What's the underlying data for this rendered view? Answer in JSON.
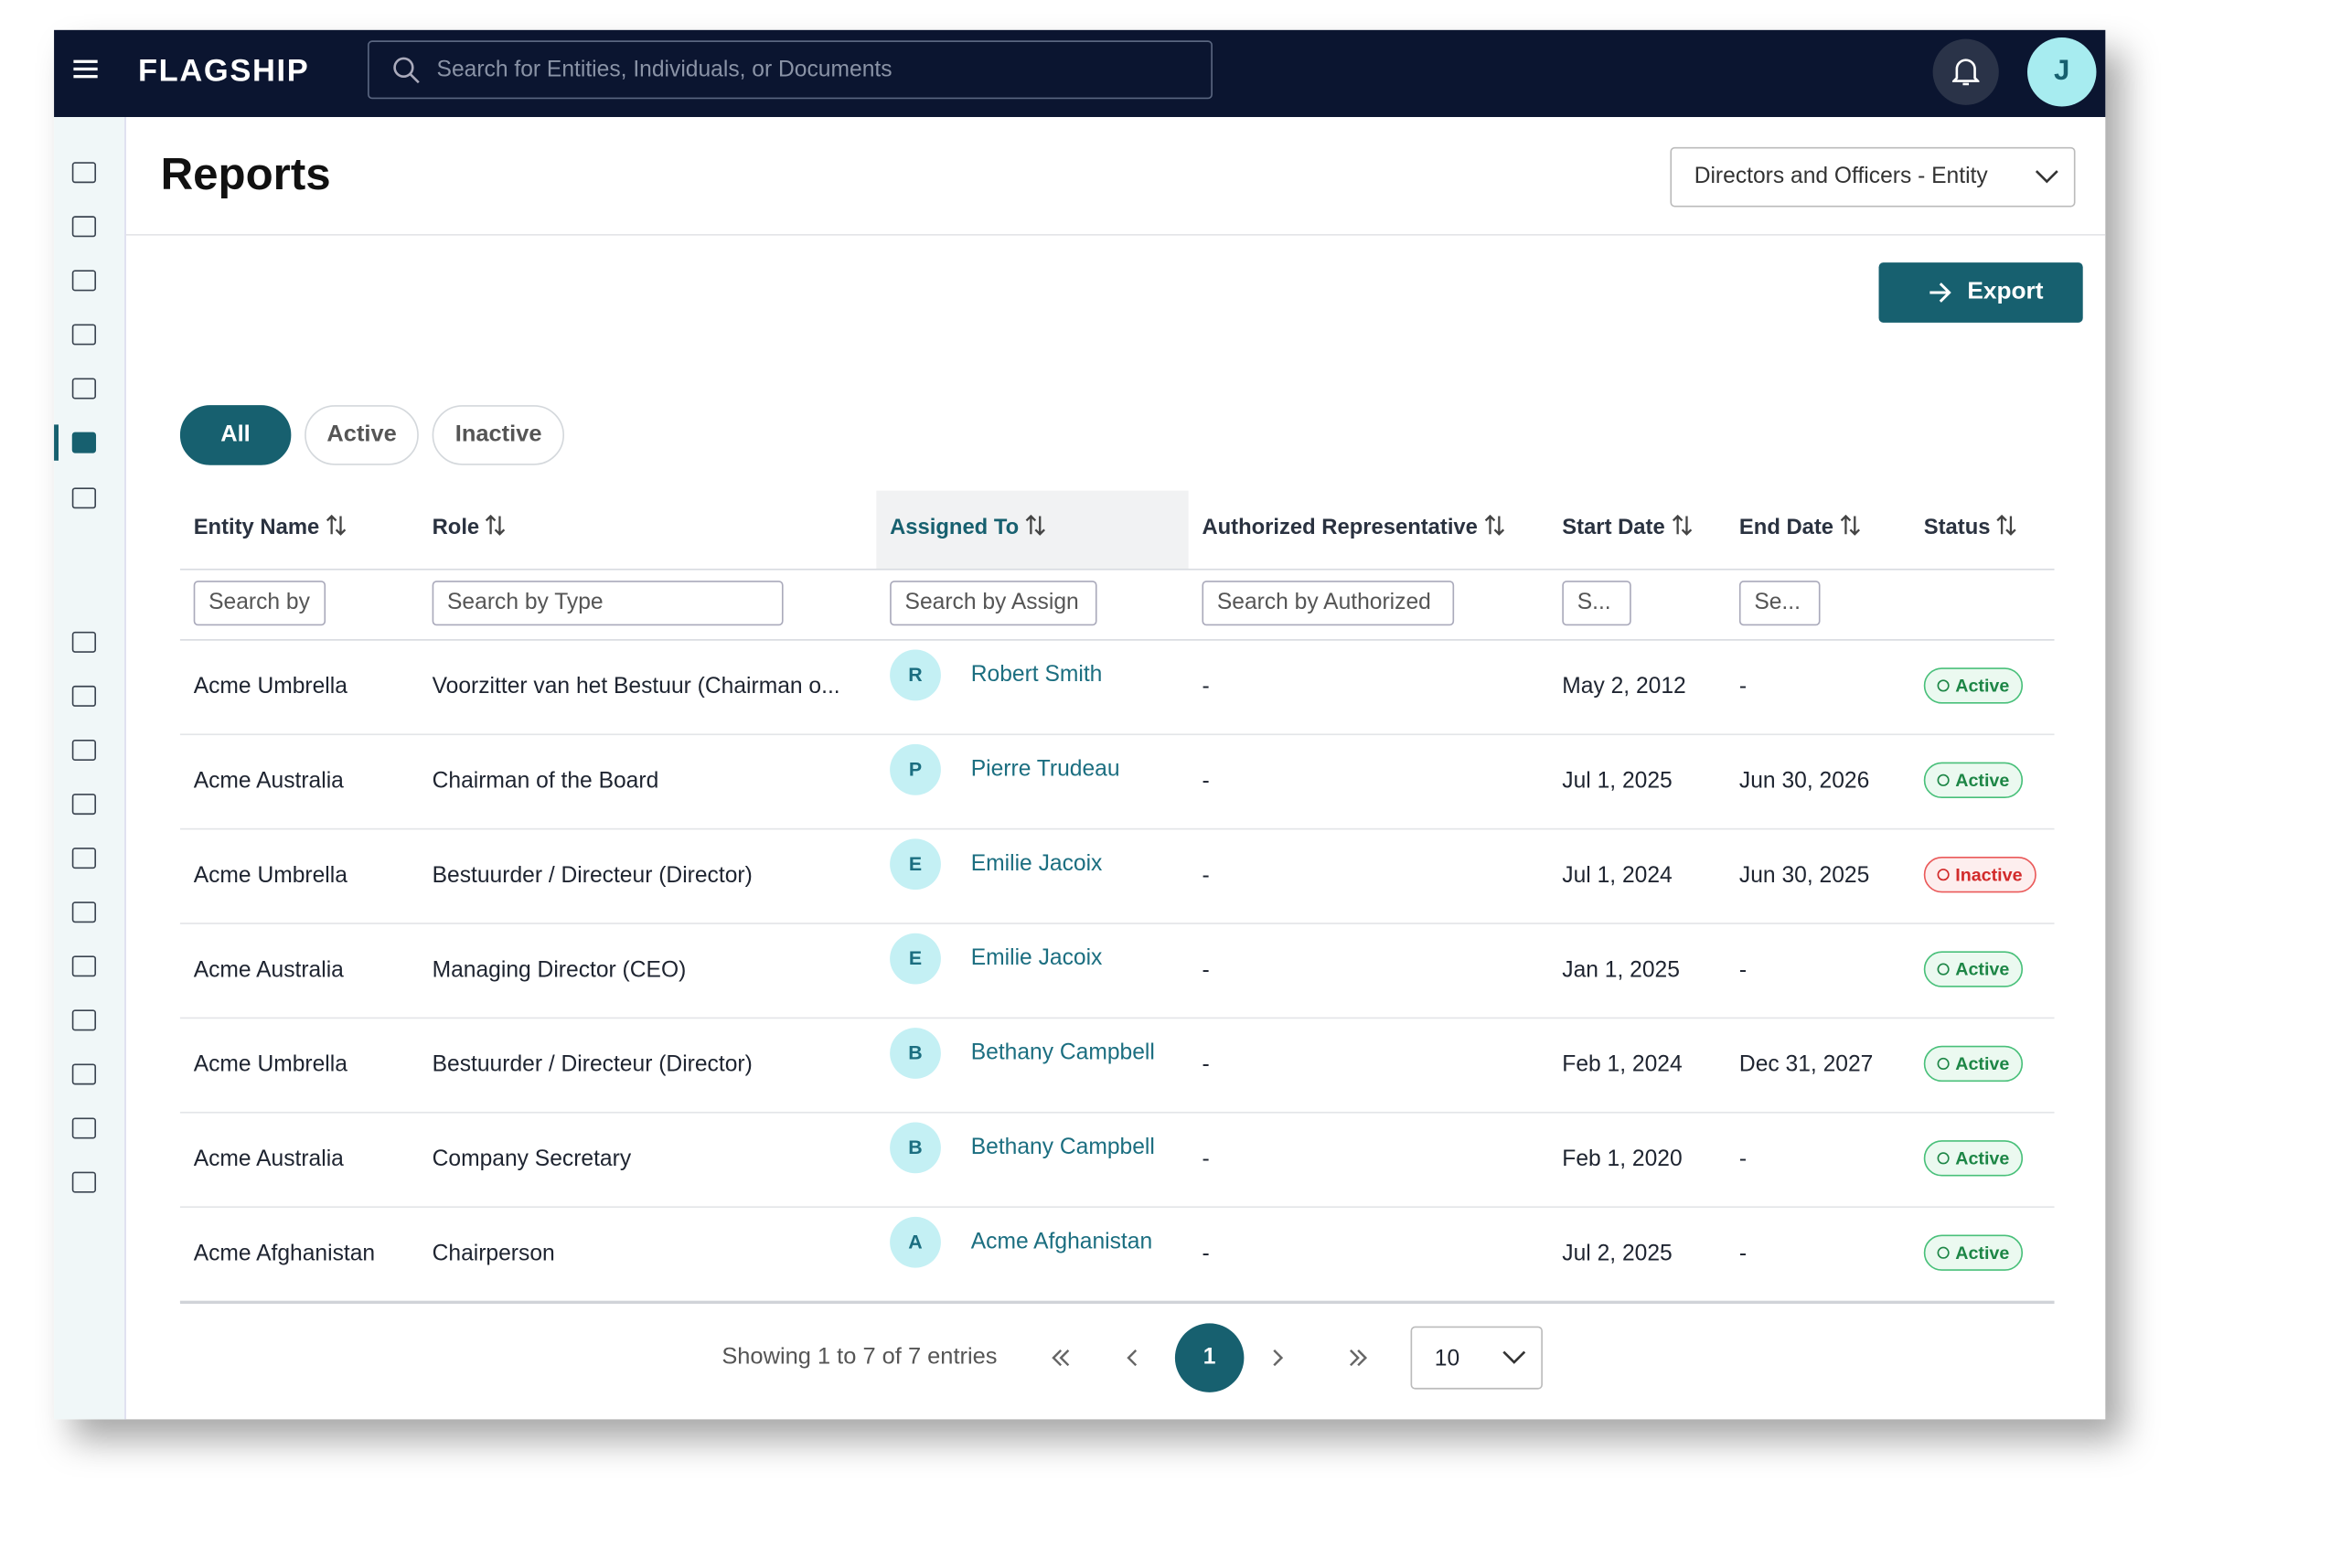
{
  "header": {
    "logo": "FLAGSHIP",
    "search_placeholder": "Search for Entities, Individuals, or Documents",
    "avatar": "J"
  },
  "page": {
    "title": "Reports",
    "report_select": "Directors and Officers - Entity",
    "export": "Export"
  },
  "tabs": [
    "All",
    "Active",
    "Inactive"
  ],
  "table": {
    "columns": [
      {
        "label": "Entity Name",
        "filter": "Search by"
      },
      {
        "label": "Role",
        "filter": "Search by Type"
      },
      {
        "label": "Assigned To",
        "filter": "Search by Assign"
      },
      {
        "label": "Authorized Representative",
        "filter": "Search by Authorized"
      },
      {
        "label": "Start Date",
        "filter": "S..."
      },
      {
        "label": "End Date",
        "filter": "Se..."
      },
      {
        "label": "Status"
      }
    ],
    "rows": [
      {
        "entity": "Acme Umbrella",
        "role": "Voorzitter van het Bestuur (Chairman o...",
        "initial": "R",
        "assigned": "Robert Smith",
        "rep": "-",
        "start": "May 2, 2012",
        "end": "-",
        "status": "Active"
      },
      {
        "entity": "Acme Australia",
        "role": "Chairman of the Board",
        "initial": "P",
        "assigned": "Pierre Trudeau",
        "rep": "-",
        "start": "Jul 1, 2025",
        "end": "Jun 30, 2026",
        "status": "Active"
      },
      {
        "entity": "Acme Umbrella",
        "role": "Bestuurder / Directeur (Director)",
        "initial": "E",
        "assigned": "Emilie Jacoix",
        "rep": "-",
        "start": "Jul 1, 2024",
        "end": "Jun 30, 2025",
        "status": "Inactive"
      },
      {
        "entity": "Acme Australia",
        "role": "Managing Director (CEO)",
        "initial": "E",
        "assigned": "Emilie Jacoix",
        "rep": "-",
        "start": "Jan 1, 2025",
        "end": "-",
        "status": "Active"
      },
      {
        "entity": "Acme Umbrella",
        "role": "Bestuurder / Directeur (Director)",
        "initial": "B",
        "assigned": "Bethany Campbell",
        "rep": "-",
        "start": "Feb 1, 2024",
        "end": "Dec 31, 2027",
        "status": "Active"
      },
      {
        "entity": "Acme Australia",
        "role": "Company Secretary",
        "initial": "B",
        "assigned": "Bethany Campbell",
        "rep": "-",
        "start": "Feb 1, 2020",
        "end": "-",
        "status": "Active"
      },
      {
        "entity": "Acme Afghanistan",
        "role": "Chairperson",
        "initial": "A",
        "assigned": "Acme Afghanistan",
        "rep": "-",
        "start": "Jul 2, 2025",
        "end": "-",
        "status": "Active"
      }
    ]
  },
  "pagination": {
    "summary": "Showing 1 to 7 of 7 entries",
    "page": "1",
    "page_size": "10"
  }
}
